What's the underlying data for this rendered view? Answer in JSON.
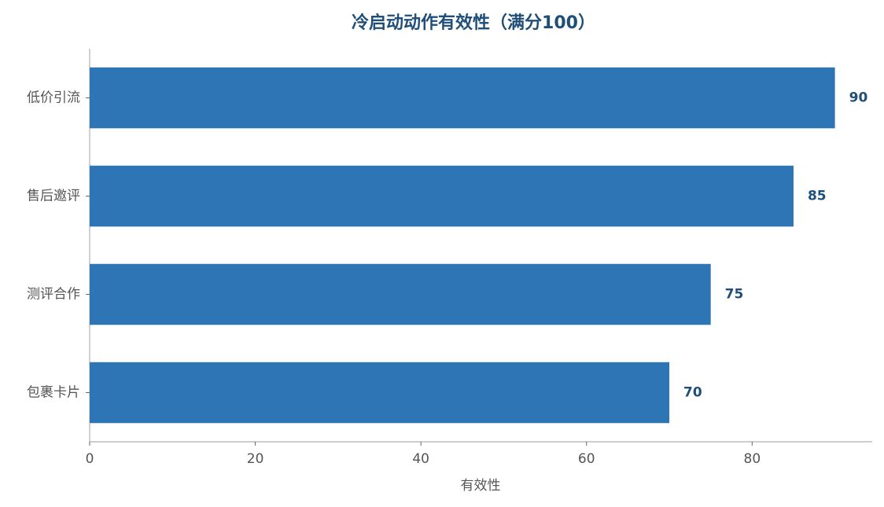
{
  "chart_data": {
    "type": "bar",
    "orientation": "horizontal",
    "title": "冷启动动作有效性（满分100）",
    "x_label": "有效性",
    "categories": [
      "低价引流",
      "售后邀评",
      "测评合作",
      "包裹卡片"
    ],
    "values": [
      90,
      85,
      75,
      70
    ],
    "color": "#2e75b6",
    "xlim": [
      0,
      94.5
    ],
    "xticks": [
      0,
      20,
      40,
      60,
      80
    ],
    "grid": false
  }
}
